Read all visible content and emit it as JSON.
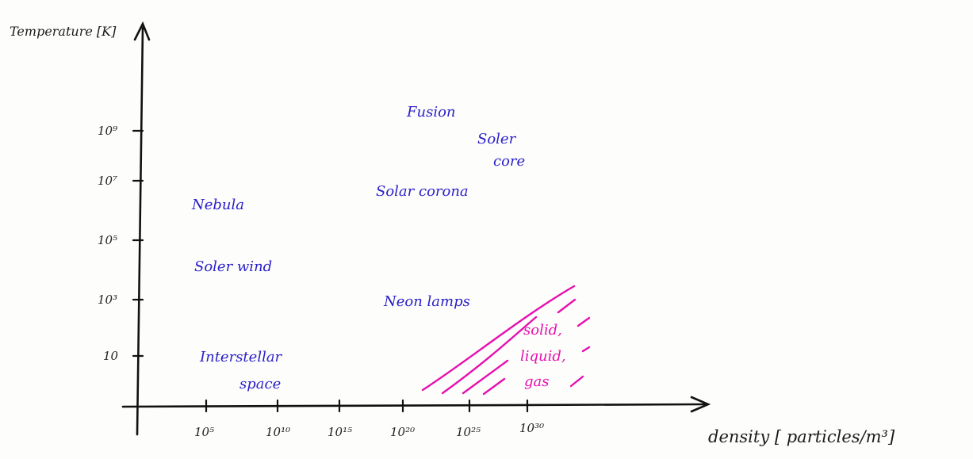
{
  "axes": {
    "y_title": "Temperature [K]",
    "x_title": "density [ particles/m³]",
    "y_ticks": [
      {
        "label": "10⁹",
        "exp": 9
      },
      {
        "label": "10⁷",
        "exp": 7
      },
      {
        "label": "10⁵",
        "exp": 5
      },
      {
        "label": "10³",
        "exp": 3
      },
      {
        "label": "10",
        "exp": 1
      }
    ],
    "x_ticks": [
      {
        "label": "10⁵",
        "exp": 5
      },
      {
        "label": "10¹⁰",
        "exp": 10
      },
      {
        "label": "10¹⁵",
        "exp": 15
      },
      {
        "label": "10²⁰",
        "exp": 20
      },
      {
        "label": "10²⁵",
        "exp": 25
      },
      {
        "label": "10³⁰",
        "exp": 30
      }
    ]
  },
  "regions": [
    {
      "lines": [
        "Fusion"
      ]
    },
    {
      "lines": [
        "Soler",
        "core"
      ]
    },
    {
      "lines": [
        "Solar corona"
      ]
    },
    {
      "lines": [
        "Nebula"
      ]
    },
    {
      "lines": [
        "Soler wind"
      ]
    },
    {
      "lines": [
        "Neon lamps"
      ]
    },
    {
      "lines": [
        "Interstellar",
        "space"
      ]
    }
  ],
  "phases": {
    "lines": [
      "solid,",
      "liquid,",
      "gas"
    ]
  },
  "colors": {
    "axis": "#111111",
    "regions": "#2a1fc8",
    "phases": "#e60fb0"
  }
}
